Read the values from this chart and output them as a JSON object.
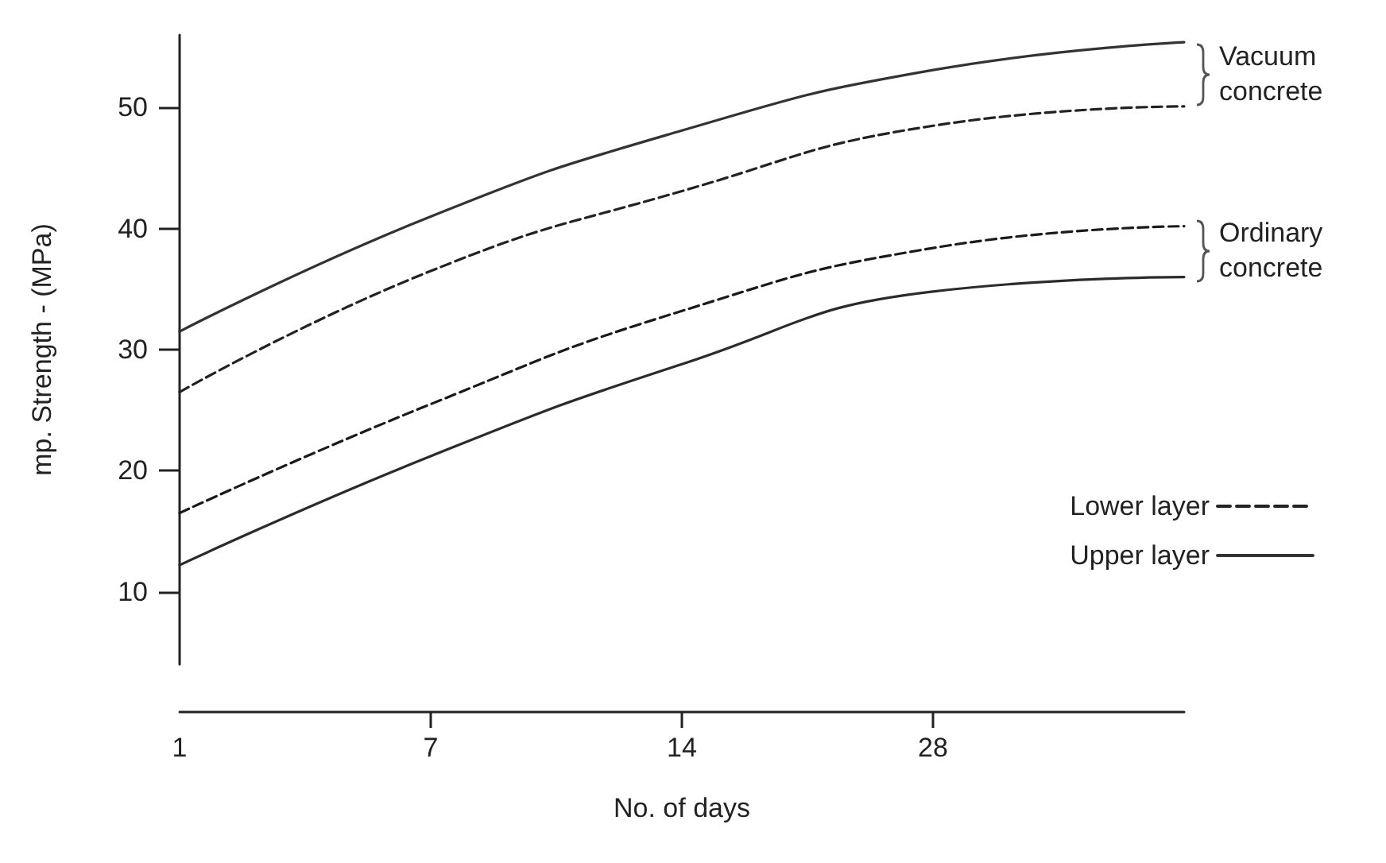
{
  "chart_data": {
    "type": "line",
    "xlabel": "No. of days",
    "ylabel": "mp. Strength - (MPa)",
    "categories": [
      "1",
      "7",
      "14",
      "28",
      null
    ],
    "ylim": [
      4,
      56
    ],
    "yticks": [
      10,
      20,
      30,
      40,
      50
    ],
    "grid": false,
    "marker": "none",
    "legend": "right",
    "series": [
      {
        "name": "Upper layer",
        "color": "#333333",
        "line_style": "solid",
        "values": [
          31.5,
          41,
          48.1,
          53.1,
          55.4
        ]
      },
      {
        "name": "Lower layer",
        "color": "#222222",
        "line_style": "dashed",
        "values": [
          26.5,
          36.5,
          43.1,
          48.5,
          50.1
        ]
      },
      {
        "color": "#1a1a1a",
        "line_style": "dashed",
        "values": [
          16.5,
          25.5,
          33.2,
          38.4,
          40.2
        ]
      },
      {
        "color": "#2b2b2b",
        "line_style": "solid",
        "values": [
          12.2,
          21.2,
          28.8,
          34.8,
          36
        ]
      }
    ],
    "annotations": [
      "Vacuum concrete",
      "Ordinary concrete"
    ]
  }
}
